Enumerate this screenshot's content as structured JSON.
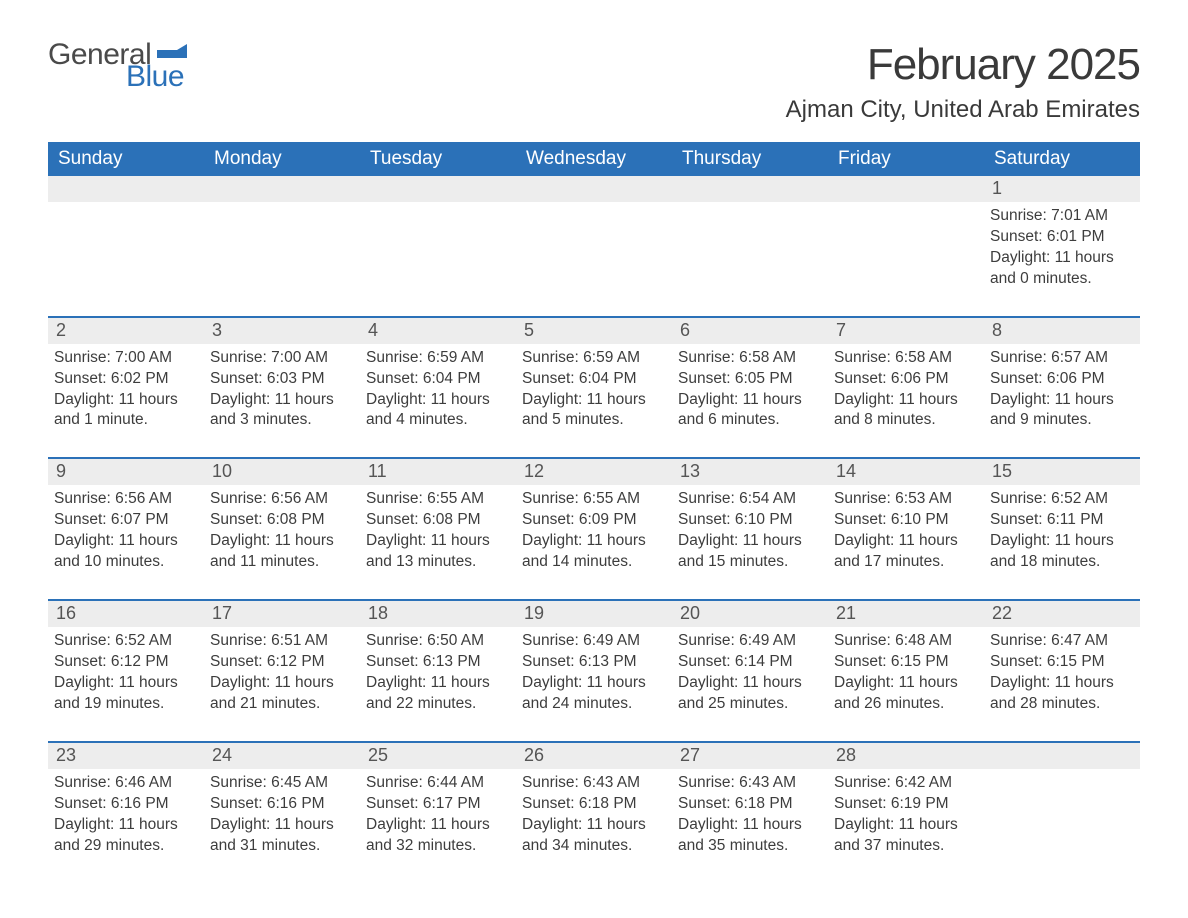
{
  "logo": {
    "top": "General",
    "bottom": "Blue"
  },
  "title": "February 2025",
  "location": "Ajman City, United Arab Emirates",
  "colors": {
    "header_bg": "#2b71b8",
    "header_text": "#ffffff",
    "daynum_bg": "#ededed",
    "border": "#2b71b8",
    "text": "#3a3a3a",
    "logo_blue": "#2b71b8"
  },
  "fonts": {
    "title_size_pt": 33,
    "location_size_pt": 18,
    "dayheader_size_pt": 14,
    "body_size_pt": 12
  },
  "layout": {
    "columns": 7,
    "rows": 5
  },
  "day_headers": [
    "Sunday",
    "Monday",
    "Tuesday",
    "Wednesday",
    "Thursday",
    "Friday",
    "Saturday"
  ],
  "weeks": [
    [
      null,
      null,
      null,
      null,
      null,
      null,
      {
        "n": "1",
        "sunrise": "Sunrise: 7:01 AM",
        "sunset": "Sunset: 6:01 PM",
        "daylight": "Daylight: 11 hours and 0 minutes."
      }
    ],
    [
      {
        "n": "2",
        "sunrise": "Sunrise: 7:00 AM",
        "sunset": "Sunset: 6:02 PM",
        "daylight": "Daylight: 11 hours and 1 minute."
      },
      {
        "n": "3",
        "sunrise": "Sunrise: 7:00 AM",
        "sunset": "Sunset: 6:03 PM",
        "daylight": "Daylight: 11 hours and 3 minutes."
      },
      {
        "n": "4",
        "sunrise": "Sunrise: 6:59 AM",
        "sunset": "Sunset: 6:04 PM",
        "daylight": "Daylight: 11 hours and 4 minutes."
      },
      {
        "n": "5",
        "sunrise": "Sunrise: 6:59 AM",
        "sunset": "Sunset: 6:04 PM",
        "daylight": "Daylight: 11 hours and 5 minutes."
      },
      {
        "n": "6",
        "sunrise": "Sunrise: 6:58 AM",
        "sunset": "Sunset: 6:05 PM",
        "daylight": "Daylight: 11 hours and 6 minutes."
      },
      {
        "n": "7",
        "sunrise": "Sunrise: 6:58 AM",
        "sunset": "Sunset: 6:06 PM",
        "daylight": "Daylight: 11 hours and 8 minutes."
      },
      {
        "n": "8",
        "sunrise": "Sunrise: 6:57 AM",
        "sunset": "Sunset: 6:06 PM",
        "daylight": "Daylight: 11 hours and 9 minutes."
      }
    ],
    [
      {
        "n": "9",
        "sunrise": "Sunrise: 6:56 AM",
        "sunset": "Sunset: 6:07 PM",
        "daylight": "Daylight: 11 hours and 10 minutes."
      },
      {
        "n": "10",
        "sunrise": "Sunrise: 6:56 AM",
        "sunset": "Sunset: 6:08 PM",
        "daylight": "Daylight: 11 hours and 11 minutes."
      },
      {
        "n": "11",
        "sunrise": "Sunrise: 6:55 AM",
        "sunset": "Sunset: 6:08 PM",
        "daylight": "Daylight: 11 hours and 13 minutes."
      },
      {
        "n": "12",
        "sunrise": "Sunrise: 6:55 AM",
        "sunset": "Sunset: 6:09 PM",
        "daylight": "Daylight: 11 hours and 14 minutes."
      },
      {
        "n": "13",
        "sunrise": "Sunrise: 6:54 AM",
        "sunset": "Sunset: 6:10 PM",
        "daylight": "Daylight: 11 hours and 15 minutes."
      },
      {
        "n": "14",
        "sunrise": "Sunrise: 6:53 AM",
        "sunset": "Sunset: 6:10 PM",
        "daylight": "Daylight: 11 hours and 17 minutes."
      },
      {
        "n": "15",
        "sunrise": "Sunrise: 6:52 AM",
        "sunset": "Sunset: 6:11 PM",
        "daylight": "Daylight: 11 hours and 18 minutes."
      }
    ],
    [
      {
        "n": "16",
        "sunrise": "Sunrise: 6:52 AM",
        "sunset": "Sunset: 6:12 PM",
        "daylight": "Daylight: 11 hours and 19 minutes."
      },
      {
        "n": "17",
        "sunrise": "Sunrise: 6:51 AM",
        "sunset": "Sunset: 6:12 PM",
        "daylight": "Daylight: 11 hours and 21 minutes."
      },
      {
        "n": "18",
        "sunrise": "Sunrise: 6:50 AM",
        "sunset": "Sunset: 6:13 PM",
        "daylight": "Daylight: 11 hours and 22 minutes."
      },
      {
        "n": "19",
        "sunrise": "Sunrise: 6:49 AM",
        "sunset": "Sunset: 6:13 PM",
        "daylight": "Daylight: 11 hours and 24 minutes."
      },
      {
        "n": "20",
        "sunrise": "Sunrise: 6:49 AM",
        "sunset": "Sunset: 6:14 PM",
        "daylight": "Daylight: 11 hours and 25 minutes."
      },
      {
        "n": "21",
        "sunrise": "Sunrise: 6:48 AM",
        "sunset": "Sunset: 6:15 PM",
        "daylight": "Daylight: 11 hours and 26 minutes."
      },
      {
        "n": "22",
        "sunrise": "Sunrise: 6:47 AM",
        "sunset": "Sunset: 6:15 PM",
        "daylight": "Daylight: 11 hours and 28 minutes."
      }
    ],
    [
      {
        "n": "23",
        "sunrise": "Sunrise: 6:46 AM",
        "sunset": "Sunset: 6:16 PM",
        "daylight": "Daylight: 11 hours and 29 minutes."
      },
      {
        "n": "24",
        "sunrise": "Sunrise: 6:45 AM",
        "sunset": "Sunset: 6:16 PM",
        "daylight": "Daylight: 11 hours and 31 minutes."
      },
      {
        "n": "25",
        "sunrise": "Sunrise: 6:44 AM",
        "sunset": "Sunset: 6:17 PM",
        "daylight": "Daylight: 11 hours and 32 minutes."
      },
      {
        "n": "26",
        "sunrise": "Sunrise: 6:43 AM",
        "sunset": "Sunset: 6:18 PM",
        "daylight": "Daylight: 11 hours and 34 minutes."
      },
      {
        "n": "27",
        "sunrise": "Sunrise: 6:43 AM",
        "sunset": "Sunset: 6:18 PM",
        "daylight": "Daylight: 11 hours and 35 minutes."
      },
      {
        "n": "28",
        "sunrise": "Sunrise: 6:42 AM",
        "sunset": "Sunset: 6:19 PM",
        "daylight": "Daylight: 11 hours and 37 minutes."
      },
      null
    ]
  ]
}
